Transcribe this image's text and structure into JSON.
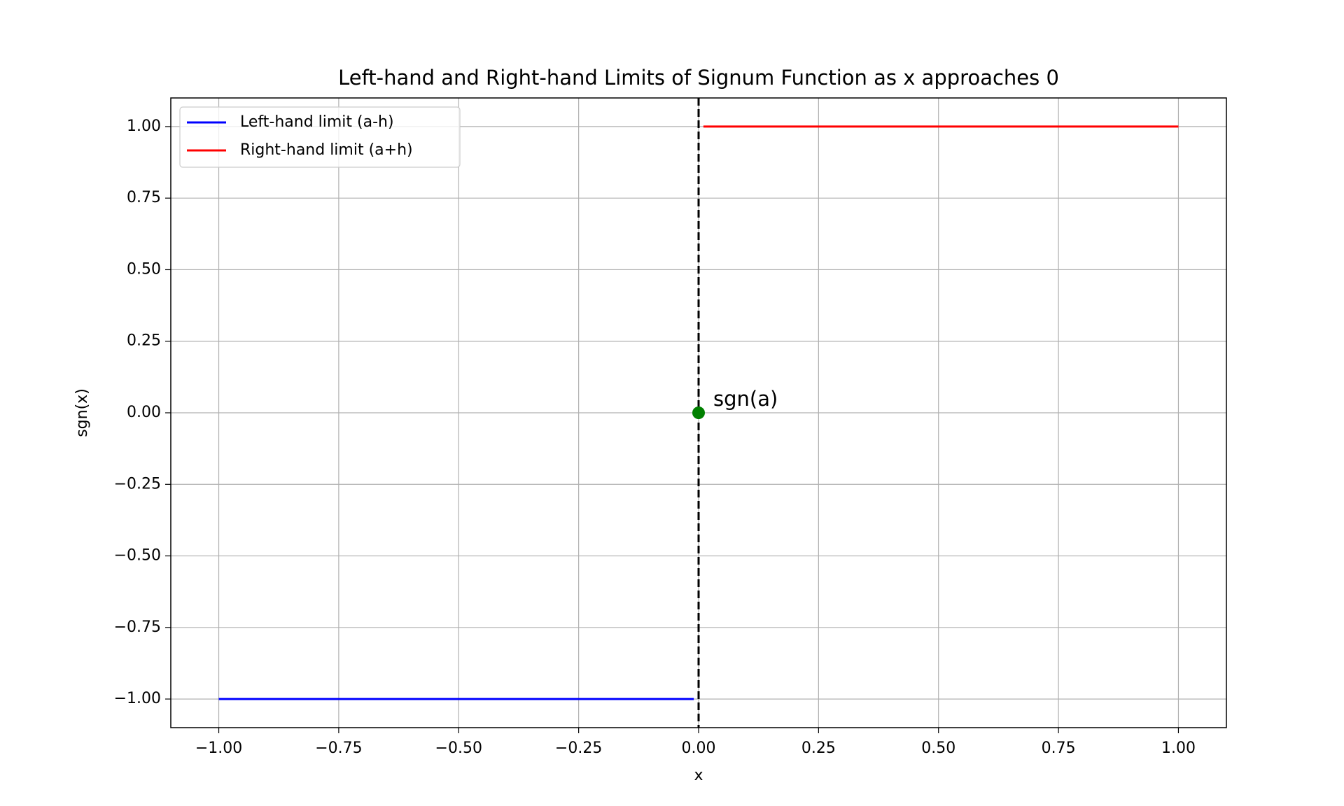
{
  "chart_data": {
    "type": "line",
    "title": "Left-hand and Right-hand Limits of Signum Function as x approaches 0",
    "xlabel": "x",
    "ylabel": "sgn(x)",
    "series": [
      {
        "name": "Left-hand limit (a-h)",
        "color": "#0000ff",
        "x": [
          -1,
          -0.01
        ],
        "values": [
          -1,
          -1
        ]
      },
      {
        "name": "Right-hand limit (a+h)",
        "color": "#ff0000",
        "x": [
          0.01,
          1
        ],
        "values": [
          1,
          1
        ]
      }
    ],
    "vline": {
      "x": 0,
      "color": "#000000",
      "style": "dashed"
    },
    "point": {
      "x": 0,
      "y": 0,
      "label": "sgn(a)",
      "color": "#008000"
    },
    "xlim": [
      -1.1,
      1.1
    ],
    "ylim": [
      -1.1,
      1.1
    ],
    "xticks": [
      {
        "value": -1,
        "label": "−1.00"
      },
      {
        "value": -0.75,
        "label": "−0.75"
      },
      {
        "value": -0.5,
        "label": "−0.50"
      },
      {
        "value": -0.25,
        "label": "−0.25"
      },
      {
        "value": 0,
        "label": "0.00"
      },
      {
        "value": 0.25,
        "label": "0.25"
      },
      {
        "value": 0.5,
        "label": "0.50"
      },
      {
        "value": 0.75,
        "label": "0.75"
      },
      {
        "value": 1,
        "label": "1.00"
      }
    ],
    "yticks": [
      {
        "value": -1,
        "label": "−1.00"
      },
      {
        "value": -0.75,
        "label": "−0.75"
      },
      {
        "value": -0.5,
        "label": "−0.50"
      },
      {
        "value": -0.25,
        "label": "−0.25"
      },
      {
        "value": 0,
        "label": "0.00"
      },
      {
        "value": 0.25,
        "label": "0.25"
      },
      {
        "value": 0.5,
        "label": "0.50"
      },
      {
        "value": 0.75,
        "label": "0.75"
      },
      {
        "value": 1,
        "label": "1.00"
      }
    ],
    "grid": true,
    "legend": "upper left"
  }
}
